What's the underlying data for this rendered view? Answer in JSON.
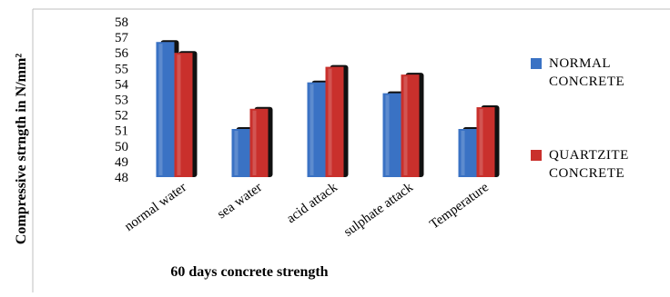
{
  "chart_data": {
    "type": "bar",
    "title": "",
    "xlabel": "60 days concrete strength",
    "ylabel": "Compressive strngth in N/mm²",
    "ylim": [
      48,
      58
    ],
    "yticks": [
      48,
      49,
      50,
      51,
      52,
      53,
      54,
      55,
      56,
      57,
      58
    ],
    "grid": false,
    "legend_position": "right",
    "categories": [
      "normal water",
      "sea water",
      "acid attack",
      "sulphate attack",
      "Temperature"
    ],
    "series": [
      {
        "name": "NORMAL CONCRETE",
        "name_lines": [
          "NORMAL",
          "CONCRETE"
        ],
        "color": "#3a72c4",
        "values": [
          56.7,
          51.1,
          54.1,
          53.4,
          51.1
        ]
      },
      {
        "name": "QUARTZITE CONCRETE",
        "name_lines": [
          "QUARTZITE",
          "CONCRETE"
        ],
        "color": "#c9302c",
        "values": [
          56.0,
          52.4,
          55.1,
          54.6,
          52.5
        ]
      }
    ]
  }
}
